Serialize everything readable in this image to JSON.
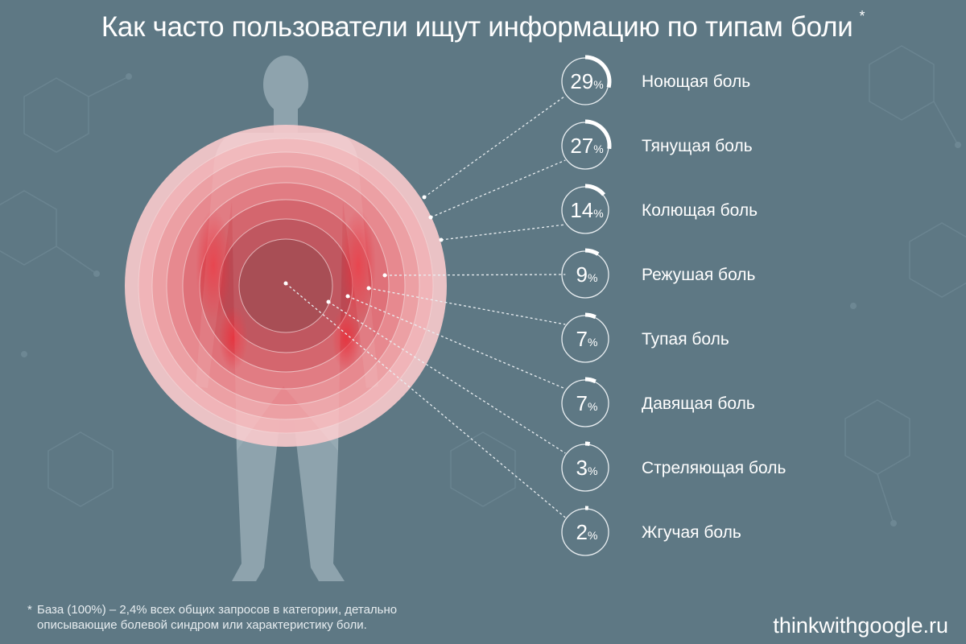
{
  "title": "Как часто пользователи ищут информацию по типам боли",
  "title_marker": "*",
  "chart_data": {
    "type": "radial",
    "unit": "%",
    "items": [
      {
        "label": "Ноющая боль",
        "value": 29
      },
      {
        "label": "Тянущая боль",
        "value": 27
      },
      {
        "label": "Колющая боль",
        "value": 14
      },
      {
        "label": "Режушая боль",
        "value": 9
      },
      {
        "label": "Тупая боль",
        "value": 7
      },
      {
        "label": "Давящая боль",
        "value": 7
      },
      {
        "label": "Стреляющая боль",
        "value": 3
      },
      {
        "label": "Жгучая боль",
        "value": 2
      }
    ]
  },
  "footnote": {
    "marker": "*",
    "line1": "База (100%) – 2,4% всех общих запросов в категории, детально",
    "line2": "описывающие болевой синдром или характеристику боли."
  },
  "brand": "thinkwithgoogle.ru",
  "colors": {
    "background": "#5e7884",
    "silhouette": "#8ea3ad",
    "ring_outer": "#f6c9cb",
    "ring_inner": "#9e3f47",
    "accent_red": "#e0333f"
  }
}
